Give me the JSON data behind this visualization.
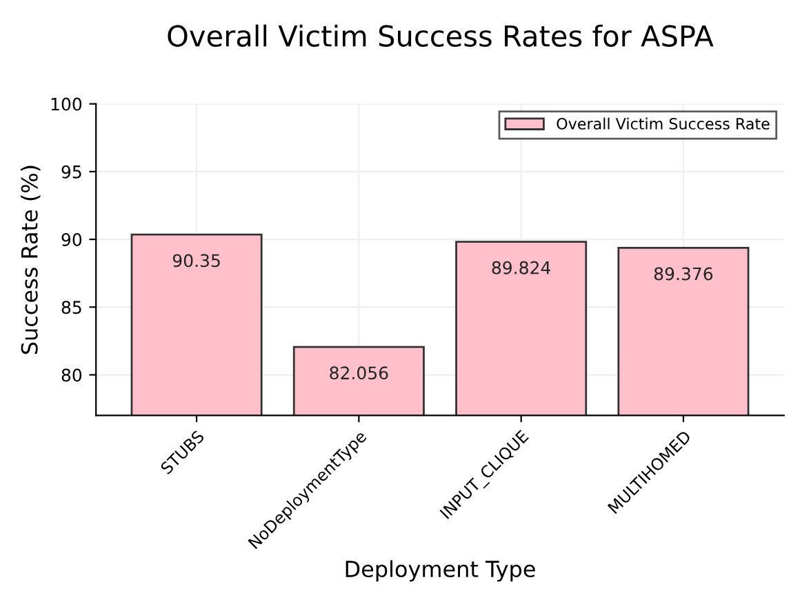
{
  "chart_data": {
    "type": "bar",
    "title": "Overall Victim Success Rates for ASPA",
    "xlabel": "Deployment Type",
    "ylabel": "Success Rate (%)",
    "categories": [
      "STUBS",
      "NoDeploymentType",
      "INPUT_CLIQUE",
      "MULTIHOMED"
    ],
    "series": [
      {
        "name": "Overall Victim Success Rate",
        "color": "#ffc0cb",
        "values": [
          90.35,
          82.056,
          89.824,
          89.376
        ]
      }
    ],
    "ylim": [
      77,
      100
    ],
    "yticks": [
      80,
      85,
      90,
      95,
      100
    ],
    "grid": true,
    "legend": "top right",
    "data_labels": true
  }
}
